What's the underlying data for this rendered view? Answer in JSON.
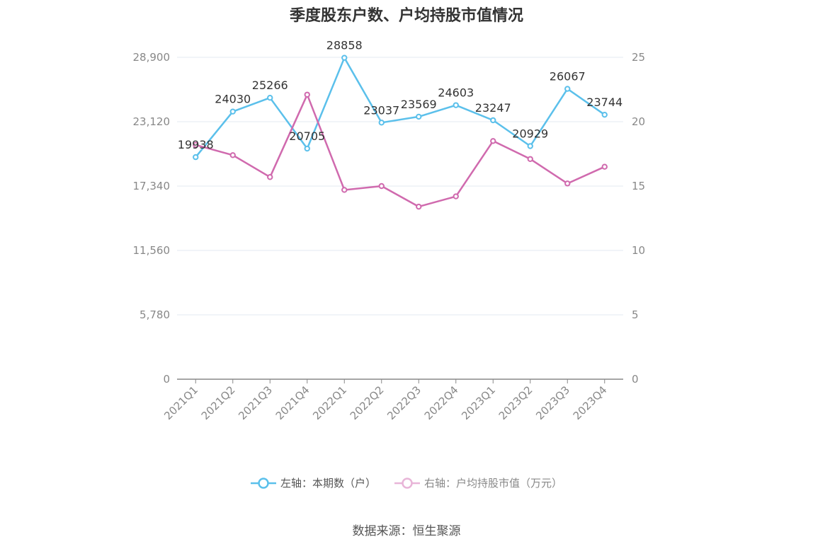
{
  "chart_data": {
    "type": "line",
    "title": "季度股东户数、户均持股市值情况",
    "categories": [
      "2021Q1",
      "2021Q2",
      "2021Q3",
      "2021Q4",
      "2022Q1",
      "2022Q2",
      "2022Q3",
      "2022Q4",
      "2023Q1",
      "2023Q2",
      "2023Q3",
      "2023Q4"
    ],
    "left_axis": {
      "range": [
        0,
        28900
      ],
      "ticks": [
        0,
        5780,
        11560,
        17340,
        23120,
        28900
      ],
      "tick_labels": [
        "0",
        "5,780",
        "11,560",
        "17,340",
        "23,120",
        "28,900"
      ]
    },
    "right_axis": {
      "range": [
        0,
        25
      ],
      "ticks": [
        0,
        5,
        10,
        15,
        20,
        25
      ],
      "tick_labels": [
        "0",
        "5",
        "10",
        "15",
        "20",
        "25"
      ]
    },
    "series": [
      {
        "name": "左轴：本期数（户）",
        "axis": "left",
        "color": "#5bc0eb",
        "values": [
          19938,
          24030,
          25266,
          20705,
          28858,
          23037,
          23569,
          24603,
          23247,
          20929,
          26067,
          23744
        ],
        "data_labels": [
          "19938",
          "24030",
          "25266",
          "20705",
          "28858",
          "23037",
          "23569",
          "24603",
          "23247",
          "20929",
          "26067",
          "23744"
        ]
      },
      {
        "name": "右轴：户均持股市值（万元）",
        "axis": "right",
        "color": "#d06aae",
        "values": [
          18.2,
          17.4,
          15.7,
          22.1,
          14.7,
          15.0,
          13.4,
          14.2,
          18.5,
          17.1,
          15.2,
          16.5
        ]
      }
    ],
    "legend_position": "bottom",
    "grid": true
  },
  "source": "数据来源：恒生聚源"
}
